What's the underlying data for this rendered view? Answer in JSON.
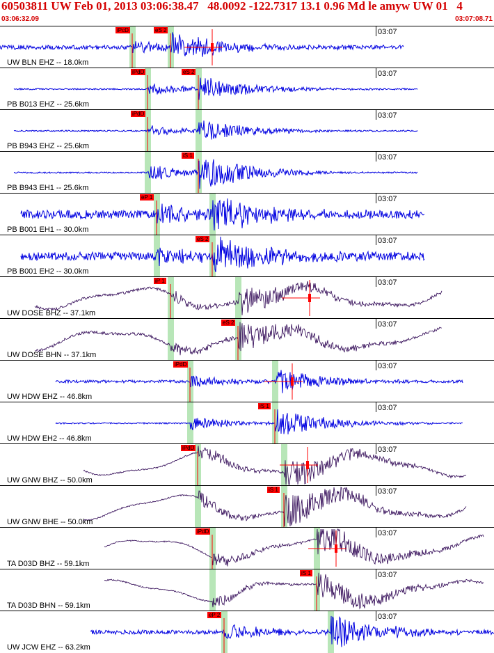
{
  "header": {
    "title": "60503811 UW Feb 01, 2013 03:06:38.47   48.0092 -122.7317 13.1 0.96 Md le amyw UW 01   4",
    "time_start": "03:06:32.09",
    "time_end": "03:07:08.71"
  },
  "colors": {
    "title": "#d40000",
    "blue_trace": "#0000e0",
    "dark_trace": "#2a0050",
    "pick": "#ff0000",
    "window": "#b8e6b8"
  },
  "panels": [
    {
      "label": "UW BLN EHZ -- 18.0km",
      "time_tick": "03:07",
      "picks": [
        {
          "text": "iPcD"
        },
        {
          "text": "eS 2"
        }
      ]
    },
    {
      "label": "PB B013 EHZ -- 25.6km",
      "time_tick": "03:07",
      "picks": [
        {
          "text": "iPdD"
        },
        {
          "text": "eS 2"
        }
      ]
    },
    {
      "label": "PB B943 EHZ -- 25.6km",
      "time_tick": "03:07",
      "picks": [
        {
          "text": "iPdD"
        }
      ]
    },
    {
      "label": "PB B943 EH1 -- 25.6km",
      "time_tick": "03:07",
      "picks": [
        {
          "text": "iS 1"
        }
      ]
    },
    {
      "label": "PB B001 EH1 -- 30.0km",
      "time_tick": "03:07",
      "picks": [
        {
          "text": "eP 1"
        }
      ]
    },
    {
      "label": "PB B001 EH2 -- 30.0km",
      "time_tick": "03:07",
      "picks": [
        {
          "text": "eS 2"
        }
      ]
    },
    {
      "label": "UW DOSE BHZ -- 37.1km",
      "time_tick": "03:07",
      "picks": [
        {
          "text": "iP 1"
        }
      ]
    },
    {
      "label": "UW DOSE BHN -- 37.1km",
      "time_tick": "03:07",
      "picks": [
        {
          "text": "eS 2"
        }
      ]
    },
    {
      "label": "UW HDW EHZ -- 46.8km",
      "time_tick": "03:07",
      "picks": [
        {
          "text": "iPdD"
        }
      ]
    },
    {
      "label": "UW HDW EH2 -- 46.8km",
      "time_tick": "03:07",
      "picks": [
        {
          "text": "iS 1"
        }
      ]
    },
    {
      "label": "UW GNW BHZ -- 50.0km",
      "time_tick": "03:07",
      "picks": [
        {
          "text": "iPdD"
        }
      ]
    },
    {
      "label": "UW GNW BHE -- 50.0km",
      "time_tick": "03:07",
      "picks": [
        {
          "text": "iS 1"
        }
      ]
    },
    {
      "label": "TA D03D BHZ -- 59.1km",
      "time_tick": "03:07",
      "picks": [
        {
          "text": "iPdD"
        }
      ]
    },
    {
      "label": "TA D03D BHN -- 59.1km",
      "time_tick": "03:07",
      "picks": [
        {
          "text": "iS 1"
        }
      ]
    },
    {
      "label": "UW JCW EHZ -- 63.2km",
      "time_tick": "03:07",
      "picks": [
        {
          "text": "eP 2"
        }
      ]
    }
  ]
}
